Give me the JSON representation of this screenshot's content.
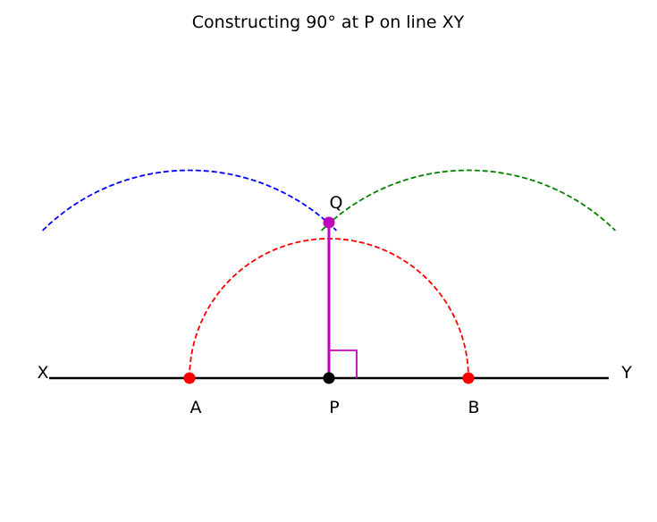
{
  "title": "Constructing 90° at P on line XY",
  "line": {
    "start_label": "X",
    "end_label": "Y",
    "color": "#000000"
  },
  "points": {
    "A": {
      "label": "A",
      "color": "#ff0000"
    },
    "P": {
      "label": "P",
      "color": "#000000"
    },
    "B": {
      "label": "B",
      "color": "#ff0000"
    },
    "Q": {
      "label": "Q",
      "color": "#bf00bf"
    }
  },
  "arcs": {
    "center_P": {
      "color": "#ff0000"
    },
    "center_A": {
      "color": "#0000ff"
    },
    "center_B": {
      "color": "#008000"
    }
  },
  "perpendicular": {
    "color": "#bf00bf"
  },
  "right_angle_marker": {
    "color": "#bf00bf"
  }
}
